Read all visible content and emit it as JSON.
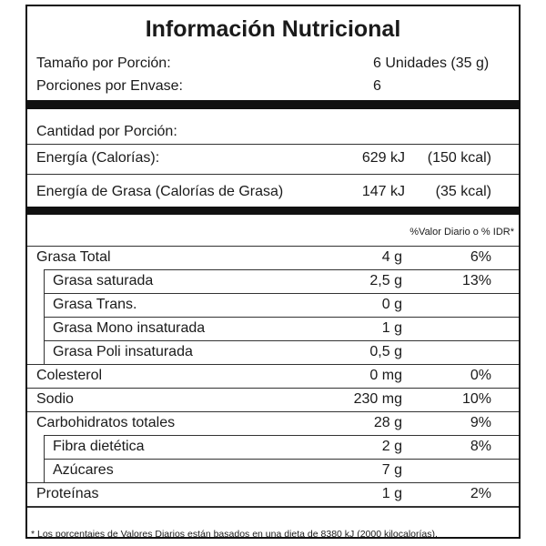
{
  "header": {
    "title": "Información Nutricional",
    "rows": [
      [
        "Tamaño por Porción:",
        "6 Unidades (35 g)"
      ],
      [
        "Porciones por Envase:",
        "6"
      ]
    ]
  },
  "energy": {
    "heading": "Cantidad por Porción:",
    "rows": [
      [
        "Energía (Calorías):",
        "629 kJ",
        "(150 kcal)"
      ],
      [
        "Energía de Grasa (Calorías de Grasa)",
        "147 kJ",
        "(35 kcal)"
      ]
    ]
  },
  "nutrients": {
    "column_header": "%Valor Diario o % IDR*",
    "rows": [
      {
        "name": "Grasa Total",
        "amount": "4 g",
        "percent": "6%",
        "subrows": [
          {
            "name": "Grasa saturada",
            "amount": "2,5 g",
            "percent": "13%"
          },
          {
            "name": "Grasa Trans.",
            "amount": "0 g"
          },
          {
            "name": "Grasa Mono insaturada",
            "amount": "1 g"
          },
          {
            "name": "Grasa Poli insaturada",
            "amount": "0,5 g"
          }
        ]
      },
      {
        "name": "Colesterol",
        "amount": "0 mg",
        "percent": "0%"
      },
      {
        "name": "Sodio",
        "amount": "230 mg",
        "percent": "10%"
      },
      {
        "name": "Carbohidratos totales",
        "amount": "28 g",
        "percent": "9%",
        "subrows": [
          {
            "name": "Fibra dietética",
            "amount": "2 g",
            "percent": "8%"
          },
          {
            "name": "Azúcares",
            "amount": "7 g"
          }
        ]
      },
      {
        "name": "Proteínas",
        "amount": "1 g",
        "percent": "2%"
      }
    ]
  },
  "footnote": "* Los porcentajes de Valores Diarios están basados en una dieta de 8380 kJ (2000 kilocalorías)."
}
